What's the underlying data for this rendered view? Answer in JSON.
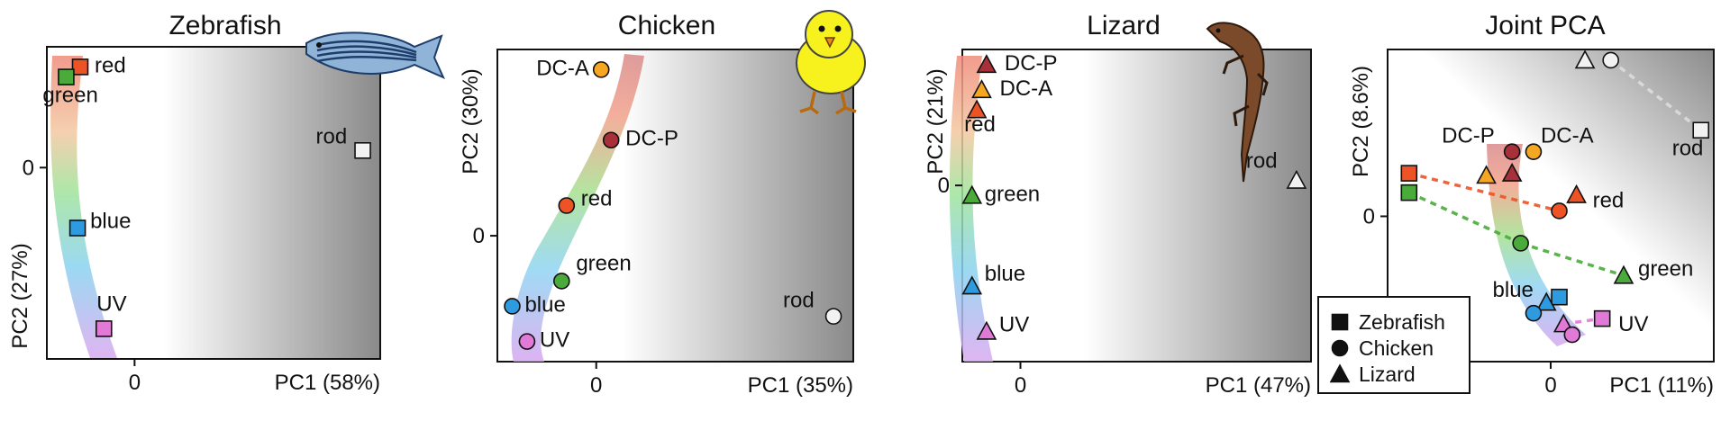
{
  "colors": {
    "red": "#ee5326",
    "green": "#4aab3a",
    "blue": "#2e9be0",
    "uv": "#e07ad6",
    "dca": "#f5a623",
    "dcp": "#a8303a",
    "rod": "#f2f2f2",
    "bg_dark": "#8a8a8a"
  },
  "legend": {
    "items": [
      {
        "label": "Zebrafish",
        "marker": "square"
      },
      {
        "label": "Chicken",
        "marker": "circle"
      },
      {
        "label": "Lizard",
        "marker": "triangle"
      }
    ]
  },
  "chart_data": [
    {
      "type": "scatter",
      "title": "Zebrafish",
      "xlabel": "PC1 (58%)",
      "ylabel": "PC2 (27%)",
      "xticks": [
        "0"
      ],
      "yticks": [
        "0"
      ],
      "icon": "zebrafish-icon",
      "xlim": [
        -1.0,
        2.8
      ],
      "ylim": [
        -1.9,
        1.2
      ],
      "marker": "square",
      "grid": false,
      "points": [
        {
          "label": "red",
          "color": "red",
          "x": -0.62,
          "y": 1.0
        },
        {
          "label": "green",
          "color": "green",
          "x": -0.78,
          "y": 0.9
        },
        {
          "label": "blue",
          "color": "blue",
          "x": -0.65,
          "y": -0.6
        },
        {
          "label": "UV",
          "color": "uv",
          "x": -0.35,
          "y": -1.6
        },
        {
          "label": "rod",
          "color": "rod",
          "x": 2.6,
          "y": 0.17
        }
      ]
    },
    {
      "type": "scatter",
      "title": "Chicken",
      "xlabel": "PC1 (35%)",
      "ylabel": "PC2 (30%)",
      "xticks": [
        "0"
      ],
      "yticks": [
        "0"
      ],
      "icon": "chick-icon",
      "xlim": [
        -1.0,
        2.6
      ],
      "ylim": [
        -1.25,
        1.85
      ],
      "marker": "circle",
      "grid": false,
      "points": [
        {
          "label": "DC-A",
          "color": "dca",
          "x": 0.05,
          "y": 1.65
        },
        {
          "label": "DC-P",
          "color": "dcp",
          "x": 0.15,
          "y": 0.95
        },
        {
          "label": "red",
          "color": "red",
          "x": -0.3,
          "y": 0.3
        },
        {
          "label": "green",
          "color": "green",
          "x": -0.35,
          "y": -0.45
        },
        {
          "label": "blue",
          "color": "blue",
          "x": -0.85,
          "y": -0.7
        },
        {
          "label": "UV",
          "color": "uv",
          "x": -0.7,
          "y": -1.05
        },
        {
          "label": "rod",
          "color": "rod",
          "x": 2.4,
          "y": -0.8
        }
      ]
    },
    {
      "type": "scatter",
      "title": "Lizard",
      "xlabel": "PC1 (47%)",
      "ylabel": "PC2 (21%)",
      "xticks": [
        "0"
      ],
      "yticks": [
        "0"
      ],
      "icon": "lizard-icon",
      "xlim": [
        -0.6,
        3.0
      ],
      "ylim": [
        -1.75,
        1.35
      ],
      "marker": "triangle",
      "grid": false,
      "points": [
        {
          "label": "DC-P",
          "color": "dcp",
          "x": -0.35,
          "y": 1.2
        },
        {
          "label": "DC-A",
          "color": "dca",
          "x": -0.4,
          "y": 0.95
        },
        {
          "label": "red",
          "color": "red",
          "x": -0.45,
          "y": 0.75
        },
        {
          "label": "green",
          "color": "green",
          "x": -0.5,
          "y": -0.1
        },
        {
          "label": "blue",
          "color": "blue",
          "x": -0.5,
          "y": -1.0
        },
        {
          "label": "UV",
          "color": "uv",
          "x": -0.35,
          "y": -1.45
        },
        {
          "label": "rod",
          "color": "rod",
          "x": 2.85,
          "y": 0.05
        }
      ]
    },
    {
      "type": "scatter",
      "title": "Joint PCA",
      "xlabel": "PC1 (11%)",
      "ylabel": "PC2 (8.6%)",
      "xticks": [
        "0"
      ],
      "yticks": [
        "0"
      ],
      "xlim": [
        -1.9,
        1.9
      ],
      "ylim": [
        -1.35,
        1.55
      ],
      "grid": false,
      "points": [
        {
          "label": "",
          "color": "rod",
          "marker": "triangle",
          "x": 0.4,
          "y": 1.45
        },
        {
          "label": "",
          "color": "rod",
          "marker": "circle",
          "x": 0.7,
          "y": 1.45
        },
        {
          "label": "rod",
          "color": "rod",
          "marker": "square",
          "x": 1.75,
          "y": 0.8
        },
        {
          "label": "DC-P",
          "color": "dcp",
          "marker": "circle",
          "x": -0.45,
          "y": 0.6
        },
        {
          "label": "DC-A",
          "color": "dca",
          "marker": "circle",
          "x": -0.2,
          "y": 0.6
        },
        {
          "label": "",
          "color": "dcp",
          "marker": "triangle",
          "x": -0.45,
          "y": 0.4
        },
        {
          "label": "",
          "color": "dca",
          "marker": "triangle",
          "x": -0.75,
          "y": 0.38
        },
        {
          "label": "",
          "color": "red",
          "marker": "square",
          "x": -1.65,
          "y": 0.4
        },
        {
          "label": "",
          "color": "green",
          "marker": "square",
          "x": -1.65,
          "y": 0.22
        },
        {
          "label": "red",
          "color": "red",
          "marker": "triangle",
          "x": 0.3,
          "y": 0.2
        },
        {
          "label": "",
          "color": "red",
          "marker": "circle",
          "x": 0.1,
          "y": 0.05
        },
        {
          "label": "",
          "color": "green",
          "marker": "circle",
          "x": -0.35,
          "y": -0.25
        },
        {
          "label": "green",
          "color": "green",
          "marker": "triangle",
          "x": 0.85,
          "y": -0.55
        },
        {
          "label": "blue",
          "color": "blue",
          "marker": "square",
          "x": 0.1,
          "y": -0.75
        },
        {
          "label": "",
          "color": "blue",
          "marker": "triangle",
          "x": -0.05,
          "y": -0.8
        },
        {
          "label": "",
          "color": "blue",
          "marker": "circle",
          "x": -0.2,
          "y": -0.9
        },
        {
          "label": "UV",
          "color": "uv",
          "marker": "square",
          "x": 0.6,
          "y": -0.95
        },
        {
          "label": "",
          "color": "uv",
          "marker": "triangle",
          "x": 0.15,
          "y": -1.0
        },
        {
          "label": "",
          "color": "uv",
          "marker": "circle",
          "x": 0.25,
          "y": -1.1
        }
      ]
    }
  ]
}
